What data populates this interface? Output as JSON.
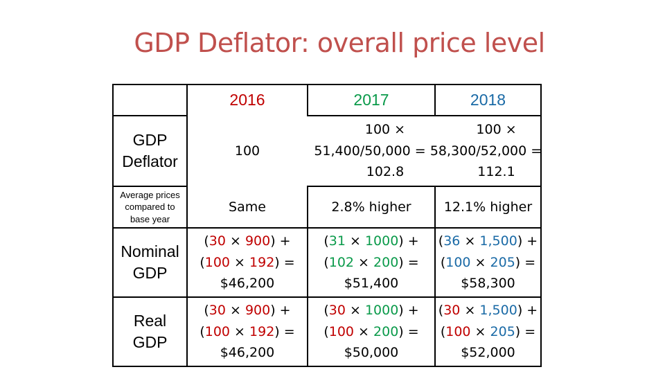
{
  "title": "GDP Deflator: overall price level",
  "colors": {
    "title": "#c0504d",
    "y2016": "#c00000",
    "y2017": "#0a9a4a",
    "y2018": "#1a6aa6"
  },
  "headers": [
    "2016",
    "2017",
    "2018"
  ],
  "rows": {
    "deflator": {
      "label_1": "GDP",
      "label_2": "Deflator",
      "y2016": "100",
      "y2017": {
        "l1": "100 ×",
        "l2": "51,400/50,000 =",
        "l3": "102.8"
      },
      "y2018": {
        "l1": "100 ×",
        "l2": "58,300/52,000 =",
        "l3": "112.1"
      }
    },
    "avg": {
      "label_1": "Average prices",
      "label_2": "compared to",
      "label_3": "base year",
      "y2016": "Same",
      "y2017": "2.8% higher",
      "y2018": "12.1% higher"
    },
    "nominal": {
      "label_1": "Nominal",
      "label_2": "GDP",
      "y2016": {
        "a": "30",
        "b": "900",
        "c": "100",
        "d": "192",
        "total": "$46,200"
      },
      "y2017": {
        "a": "31",
        "b": "1000",
        "c": "102",
        "d": "200",
        "total": "$51,400"
      },
      "y2018": {
        "a": "36",
        "b": "1,500",
        "c": "100",
        "d": "205",
        "total": "$58,300"
      }
    },
    "real": {
      "label_1": "Real",
      "label_2": "GDP",
      "y2016": {
        "a": "30",
        "b": "900",
        "c": "100",
        "d": "192",
        "total": "$46,200"
      },
      "y2017": {
        "a": "30",
        "b": "1000",
        "c": "100",
        "d": "200",
        "total": "$50,000"
      },
      "y2018": {
        "a": "30",
        "b": "1,500",
        "c": "100",
        "d": "205",
        "total": "$52,000"
      }
    }
  }
}
